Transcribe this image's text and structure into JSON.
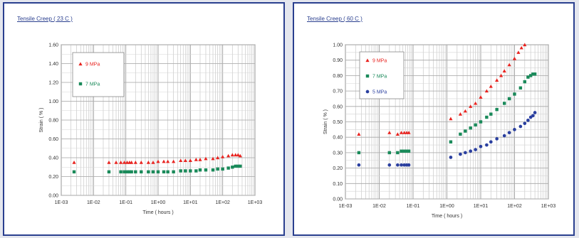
{
  "chart_data": [
    {
      "type": "scatter",
      "title": "Tensile Creep ( 23 C )",
      "xlabel": "Time ( hours )",
      "ylabel": "Strain ( % )",
      "xscale": "log",
      "xlim": [
        0.001,
        1000
      ],
      "ylim": [
        0,
        1.6
      ],
      "grid": true,
      "legend": "top-left",
      "xticks": [
        "1E-03",
        "1E-02",
        "1E-01",
        "1E+00",
        "1E+01",
        "1E+02",
        "1E+03"
      ],
      "yticks": [
        "0.00",
        "0.20",
        "0.40",
        "0.60",
        "0.80",
        "1.00",
        "1.20",
        "1.40",
        "1.60"
      ],
      "series": [
        {
          "name": "9 MPa",
          "marker": "triangle",
          "color": "#e8231f",
          "x": [
            0.0025,
            0.03,
            0.05,
            0.07,
            0.09,
            0.11,
            0.13,
            0.15,
            0.2,
            0.3,
            0.5,
            0.7,
            1,
            1.5,
            2,
            3,
            5,
            7,
            10,
            15,
            20,
            30,
            50,
            70,
            100,
            150,
            200,
            250,
            300,
            350
          ],
          "y": [
            0.35,
            0.35,
            0.35,
            0.35,
            0.35,
            0.35,
            0.35,
            0.35,
            0.35,
            0.35,
            0.35,
            0.35,
            0.36,
            0.36,
            0.36,
            0.36,
            0.37,
            0.37,
            0.37,
            0.38,
            0.38,
            0.39,
            0.39,
            0.4,
            0.41,
            0.42,
            0.43,
            0.43,
            0.43,
            0.42
          ]
        },
        {
          "name": "7 MPa",
          "marker": "square",
          "color": "#1a8a5a",
          "x": [
            0.0025,
            0.03,
            0.07,
            0.09,
            0.11,
            0.13,
            0.15,
            0.2,
            0.3,
            0.5,
            0.7,
            1,
            1.5,
            2,
            3,
            5,
            7,
            10,
            15,
            20,
            30,
            50,
            70,
            100,
            150,
            200,
            250,
            300,
            350
          ],
          "y": [
            0.25,
            0.25,
            0.25,
            0.25,
            0.25,
            0.25,
            0.25,
            0.25,
            0.25,
            0.25,
            0.25,
            0.25,
            0.25,
            0.25,
            0.25,
            0.26,
            0.26,
            0.26,
            0.26,
            0.27,
            0.27,
            0.27,
            0.28,
            0.28,
            0.29,
            0.3,
            0.31,
            0.31,
            0.31
          ]
        }
      ]
    },
    {
      "type": "scatter",
      "title": "Tensile Creep ( 60 C )",
      "xlabel": "Time ( hours )",
      "ylabel": "Strain ( % )",
      "xscale": "log",
      "xlim": [
        0.001,
        1000
      ],
      "ylim": [
        0,
        1.0
      ],
      "grid": true,
      "legend": "top-left",
      "xticks": [
        "1E-03",
        "1E-02",
        "1E-01",
        "1E+00",
        "1E+01",
        "1E+02",
        "1E+03"
      ],
      "yticks": [
        "0.00",
        "0.10",
        "0.20",
        "0.30",
        "0.40",
        "0.50",
        "0.60",
        "0.70",
        "0.80",
        "0.90",
        "1.00"
      ],
      "series": [
        {
          "name": "9 MPa",
          "marker": "triangle",
          "color": "#e8231f",
          "x": [
            0.0025,
            0.02,
            0.035,
            0.045,
            0.055,
            0.065,
            0.075,
            1.3,
            2.5,
            3.5,
            5,
            7,
            10,
            15,
            20,
            30,
            40,
            50,
            70,
            100,
            130,
            160,
            200
          ],
          "y": [
            0.42,
            0.43,
            0.42,
            0.43,
            0.43,
            0.43,
            0.43,
            0.52,
            0.55,
            0.57,
            0.6,
            0.62,
            0.66,
            0.7,
            0.73,
            0.77,
            0.8,
            0.83,
            0.87,
            0.91,
            0.95,
            0.98,
            1.0
          ]
        },
        {
          "name": "7 MPa",
          "marker": "square",
          "color": "#1a8a5a",
          "x": [
            0.0025,
            0.02,
            0.035,
            0.045,
            0.055,
            0.065,
            0.075,
            1.3,
            2.5,
            3.5,
            5,
            7,
            10,
            15,
            20,
            30,
            50,
            70,
            100,
            150,
            200,
            250,
            300,
            350,
            400
          ],
          "y": [
            0.3,
            0.3,
            0.3,
            0.31,
            0.31,
            0.31,
            0.31,
            0.37,
            0.42,
            0.44,
            0.46,
            0.48,
            0.5,
            0.53,
            0.55,
            0.58,
            0.62,
            0.65,
            0.68,
            0.72,
            0.76,
            0.79,
            0.8,
            0.81,
            0.81
          ]
        },
        {
          "name": "5 MPa",
          "marker": "circle",
          "color": "#2a3f9f",
          "x": [
            0.0025,
            0.02,
            0.035,
            0.045,
            0.055,
            0.065,
            0.075,
            1.3,
            2.5,
            3.5,
            5,
            7,
            10,
            15,
            20,
            30,
            50,
            70,
            100,
            150,
            200,
            250,
            300,
            350,
            400
          ],
          "y": [
            0.22,
            0.22,
            0.22,
            0.22,
            0.22,
            0.22,
            0.22,
            0.27,
            0.29,
            0.3,
            0.31,
            0.32,
            0.34,
            0.35,
            0.37,
            0.39,
            0.41,
            0.43,
            0.45,
            0.47,
            0.49,
            0.51,
            0.53,
            0.54,
            0.56
          ]
        }
      ]
    }
  ]
}
